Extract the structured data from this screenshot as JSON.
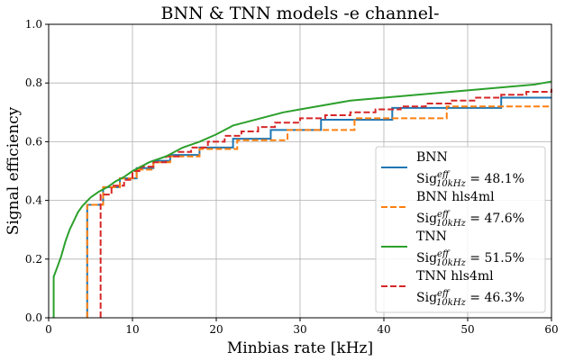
{
  "chart_data": {
    "type": "line",
    "title": "BNN & TNN models -e channel-",
    "xlabel": "Minbias rate [kHz]",
    "ylabel": "Signal efficiency",
    "xlim": [
      0,
      60
    ],
    "ylim": [
      0.0,
      1.0
    ],
    "xticks": [
      "0",
      "10",
      "20",
      "30",
      "40",
      "50",
      "60"
    ],
    "yticks": [
      "0.0",
      "0.2",
      "0.4",
      "0.6",
      "0.8",
      "1.0"
    ],
    "grid": true,
    "legend_position": "lower-right",
    "series": [
      {
        "name": "BNN",
        "metric_prefix": "Sig",
        "metric_sup": "eff",
        "metric_sub": "10kHz",
        "metric_value": " = 48.1%",
        "color": "#1f77b4",
        "dash": "solid",
        "step": true,
        "points": [
          [
            4.6,
            0.0
          ],
          [
            4.6,
            0.385
          ],
          [
            6.5,
            0.385
          ],
          [
            6.5,
            0.445
          ],
          [
            8.5,
            0.445
          ],
          [
            8.5,
            0.475
          ],
          [
            10.5,
            0.475
          ],
          [
            10.5,
            0.51
          ],
          [
            12.5,
            0.51
          ],
          [
            12.5,
            0.535
          ],
          [
            14.5,
            0.535
          ],
          [
            14.5,
            0.555
          ],
          [
            18,
            0.555
          ],
          [
            18,
            0.58
          ],
          [
            22,
            0.58
          ],
          [
            22,
            0.61
          ],
          [
            26.5,
            0.61
          ],
          [
            26.5,
            0.64
          ],
          [
            32.5,
            0.64
          ],
          [
            32.5,
            0.675
          ],
          [
            41,
            0.675
          ],
          [
            41,
            0.715
          ],
          [
            54,
            0.715
          ],
          [
            54,
            0.75
          ],
          [
            60,
            0.75
          ]
        ]
      },
      {
        "name": "BNN hls4ml",
        "metric_prefix": "Sig",
        "metric_sup": "eff",
        "metric_sub": "10kHz",
        "metric_value": " = 47.6%",
        "color": "#ff7f0e",
        "dash": "dashed",
        "step": true,
        "points": [
          [
            4.6,
            0.0
          ],
          [
            4.6,
            0.385
          ],
          [
            6.5,
            0.385
          ],
          [
            6.5,
            0.445
          ],
          [
            8.5,
            0.445
          ],
          [
            8.5,
            0.475
          ],
          [
            10.5,
            0.475
          ],
          [
            10.5,
            0.505
          ],
          [
            12.5,
            0.505
          ],
          [
            12.5,
            0.53
          ],
          [
            14.5,
            0.53
          ],
          [
            14.5,
            0.55
          ],
          [
            18,
            0.55
          ],
          [
            18,
            0.575
          ],
          [
            22.5,
            0.575
          ],
          [
            22.5,
            0.605
          ],
          [
            28.5,
            0.605
          ],
          [
            28.5,
            0.64
          ],
          [
            36.5,
            0.64
          ],
          [
            36.5,
            0.68
          ],
          [
            47.5,
            0.68
          ],
          [
            47.5,
            0.72
          ],
          [
            60,
            0.72
          ]
        ]
      },
      {
        "name": "TNN",
        "metric_prefix": "Sig",
        "metric_sup": "eff",
        "metric_sub": "10kHz",
        "metric_value": " = 51.5%",
        "color": "#2ca02c",
        "dash": "solid",
        "step": false,
        "points": [
          [
            0.6,
            0.0
          ],
          [
            0.6,
            0.14
          ],
          [
            1.0,
            0.17
          ],
          [
            1.5,
            0.21
          ],
          [
            2.0,
            0.26
          ],
          [
            2.5,
            0.3
          ],
          [
            3.0,
            0.33
          ],
          [
            3.5,
            0.36
          ],
          [
            4.0,
            0.38
          ],
          [
            4.5,
            0.395
          ],
          [
            5.0,
            0.41
          ],
          [
            5.5,
            0.42
          ],
          [
            6.0,
            0.43
          ],
          [
            7.0,
            0.445
          ],
          [
            8.0,
            0.465
          ],
          [
            9.0,
            0.48
          ],
          [
            10.0,
            0.5
          ],
          [
            11.0,
            0.515
          ],
          [
            12.0,
            0.53
          ],
          [
            14.0,
            0.55
          ],
          [
            16.0,
            0.58
          ],
          [
            18.0,
            0.6
          ],
          [
            20.0,
            0.625
          ],
          [
            22.0,
            0.655
          ],
          [
            24.0,
            0.67
          ],
          [
            26.0,
            0.685
          ],
          [
            28.0,
            0.7
          ],
          [
            30.0,
            0.71
          ],
          [
            32.0,
            0.72
          ],
          [
            34.0,
            0.73
          ],
          [
            36.0,
            0.74
          ],
          [
            38.0,
            0.745
          ],
          [
            40.0,
            0.75
          ],
          [
            42.0,
            0.755
          ],
          [
            44.0,
            0.76
          ],
          [
            46.0,
            0.765
          ],
          [
            48.0,
            0.77
          ],
          [
            50.0,
            0.775
          ],
          [
            52.0,
            0.78
          ],
          [
            54.0,
            0.785
          ],
          [
            56.0,
            0.79
          ],
          [
            58.0,
            0.795
          ],
          [
            60.0,
            0.805
          ]
        ]
      },
      {
        "name": "TNN hls4ml",
        "metric_prefix": "Sig",
        "metric_sup": "eff",
        "metric_sub": "10kHz",
        "metric_value": " = 46.3%",
        "color": "#d62728",
        "dash": "dashed",
        "step": true,
        "points": [
          [
            6.2,
            0.0
          ],
          [
            6.2,
            0.42
          ],
          [
            7.5,
            0.42
          ],
          [
            7.5,
            0.45
          ],
          [
            9.0,
            0.45
          ],
          [
            9.0,
            0.47
          ],
          [
            10.0,
            0.47
          ],
          [
            10.0,
            0.5
          ],
          [
            11.0,
            0.5
          ],
          [
            11.0,
            0.515
          ],
          [
            12.5,
            0.515
          ],
          [
            12.5,
            0.53
          ],
          [
            14.0,
            0.53
          ],
          [
            14.0,
            0.55
          ],
          [
            15.5,
            0.55
          ],
          [
            15.5,
            0.565
          ],
          [
            17.0,
            0.565
          ],
          [
            17.0,
            0.58
          ],
          [
            19.0,
            0.58
          ],
          [
            19.0,
            0.6
          ],
          [
            21.0,
            0.6
          ],
          [
            21.0,
            0.62
          ],
          [
            23.0,
            0.62
          ],
          [
            23.0,
            0.635
          ],
          [
            25.0,
            0.635
          ],
          [
            25.0,
            0.65
          ],
          [
            27.0,
            0.65
          ],
          [
            27.0,
            0.665
          ],
          [
            30.0,
            0.665
          ],
          [
            30.0,
            0.68
          ],
          [
            33.0,
            0.68
          ],
          [
            33.0,
            0.69
          ],
          [
            36.0,
            0.69
          ],
          [
            36.0,
            0.7
          ],
          [
            39.0,
            0.7
          ],
          [
            39.0,
            0.71
          ],
          [
            42.0,
            0.71
          ],
          [
            42.0,
            0.72
          ],
          [
            45.0,
            0.72
          ],
          [
            45.0,
            0.73
          ],
          [
            48.0,
            0.73
          ],
          [
            48.0,
            0.74
          ],
          [
            51.0,
            0.74
          ],
          [
            51.0,
            0.75
          ],
          [
            54.0,
            0.75
          ],
          [
            54.0,
            0.76
          ],
          [
            57.0,
            0.76
          ],
          [
            57.0,
            0.77
          ],
          [
            60.0,
            0.77
          ],
          [
            60.0,
            0.78
          ]
        ]
      }
    ]
  }
}
